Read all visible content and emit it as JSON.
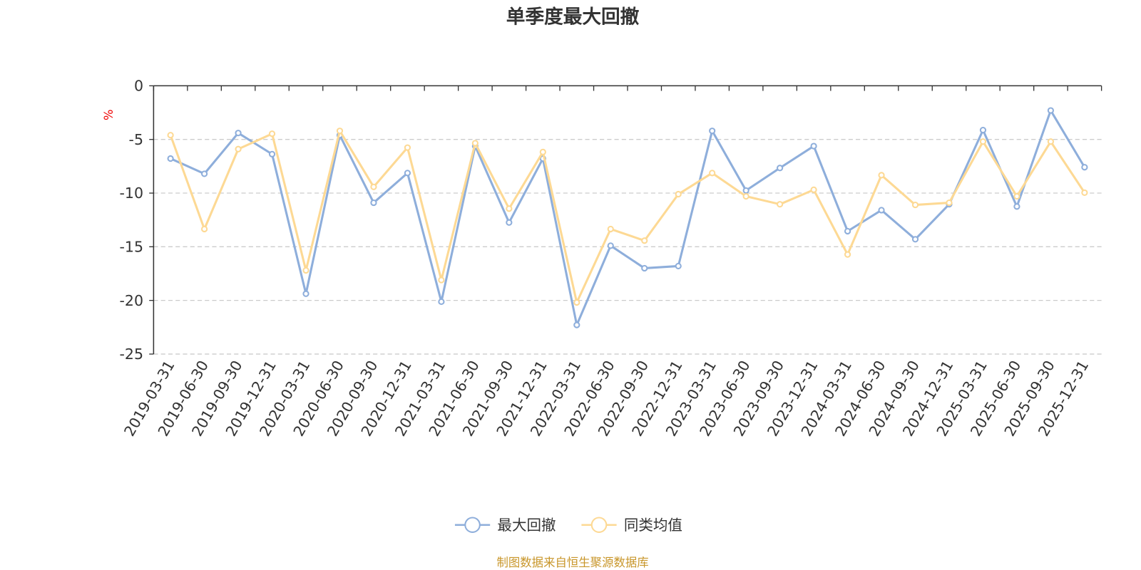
{
  "chart_data": {
    "type": "line",
    "title": "单季度最大回撤",
    "ylabel": "%",
    "ylim": [
      -25,
      0
    ],
    "yticks": [
      0,
      -5,
      -10,
      -15,
      -20,
      -25
    ],
    "grid": true,
    "legend_position": "bottom",
    "categories": [
      "2019-03-31",
      "2019-06-30",
      "2019-09-30",
      "2019-12-31",
      "2020-03-31",
      "2020-06-30",
      "2020-09-30",
      "2020-12-31",
      "2021-03-31",
      "2021-06-30",
      "2021-09-30",
      "2021-12-31",
      "2022-03-31",
      "2022-06-30",
      "2022-09-30",
      "2022-12-31",
      "2023-03-31",
      "2023-06-30",
      "2023-09-30",
      "2023-12-31",
      "2024-03-31",
      "2024-06-30",
      "2024-09-30",
      "2024-12-31",
      "2025-03-31",
      "2025-06-30",
      "2025-09-30",
      "2025-12-31"
    ],
    "series": [
      {
        "name": "最大回撤",
        "color": "#8eaedb",
        "values": [
          -6.78,
          -8.2,
          -4.4,
          -6.37,
          -19.38,
          -4.6,
          -10.9,
          -8.13,
          -20.12,
          -5.62,
          -12.74,
          -6.78,
          -22.29,
          -14.9,
          -17.0,
          -16.8,
          -4.2,
          -9.76,
          -7.66,
          -5.62,
          -13.55,
          -11.59,
          -14.3,
          -11.04,
          -4.13,
          -11.25,
          -2.3,
          -7.59
        ]
      },
      {
        "name": "同类均值",
        "color": "#fdd994",
        "values": [
          -4.6,
          -13.35,
          -5.9,
          -4.47,
          -17.2,
          -4.2,
          -9.42,
          -5.76,
          -18.1,
          -5.35,
          -11.45,
          -6.17,
          -20.19,
          -13.35,
          -14.43,
          -10.1,
          -8.13,
          -10.3,
          -11.04,
          -9.69,
          -15.72,
          -8.33,
          -11.1,
          -10.9,
          -5.2,
          -10.3,
          -5.2,
          -9.96
        ]
      }
    ]
  },
  "footer": "制图数据来自恒生聚源数据库"
}
